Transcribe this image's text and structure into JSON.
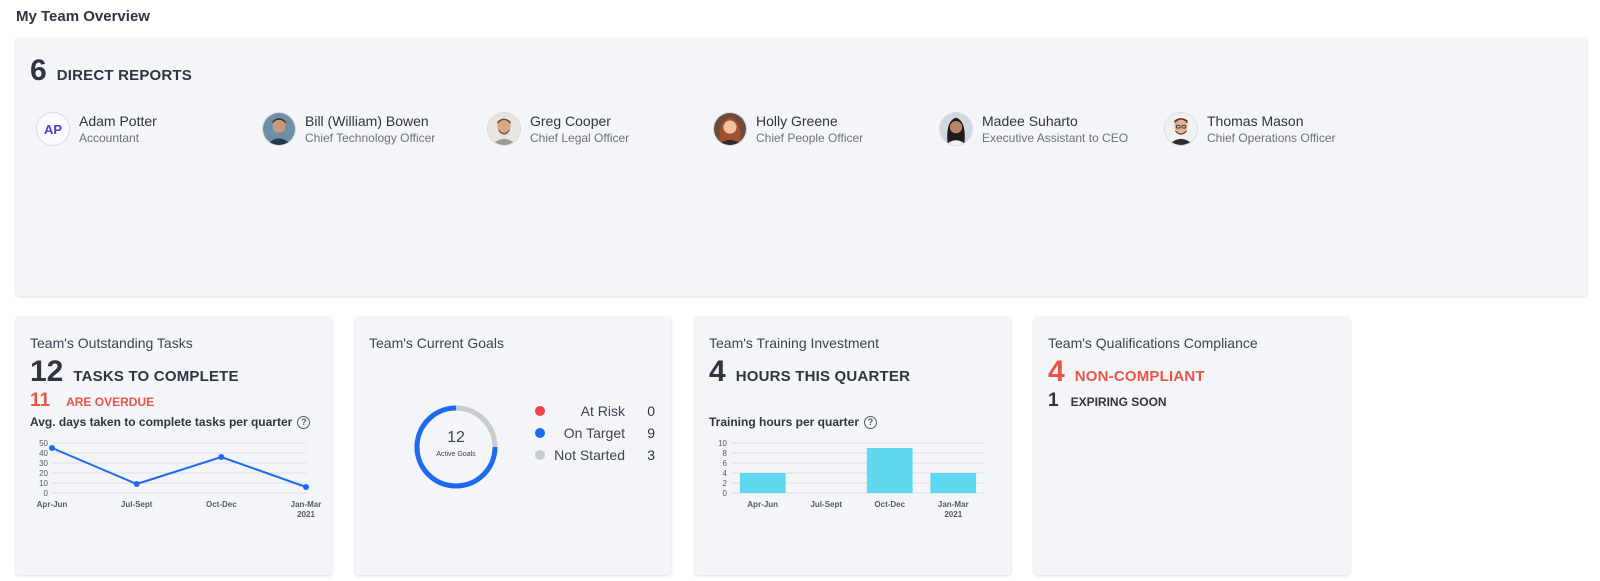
{
  "page": {
    "title": "My Team Overview"
  },
  "reports": {
    "count": "6",
    "label": "DIRECT REPORTS",
    "people": [
      {
        "name": "Adam Potter",
        "role": "Accountant",
        "initials": "AP",
        "avatar": "initials"
      },
      {
        "name": "Bill (William) Bowen",
        "role": "Chief Technology Officer",
        "avatar": "photo"
      },
      {
        "name": "Greg Cooper",
        "role": "Chief Legal Officer",
        "avatar": "photo"
      },
      {
        "name": "Holly Greene",
        "role": "Chief People Officer",
        "avatar": "photo"
      },
      {
        "name": "Madee Suharto",
        "role": "Executive Assistant to CEO",
        "avatar": "photo"
      },
      {
        "name": "Thomas Mason",
        "role": "Chief Operations Officer",
        "avatar": "photo"
      }
    ]
  },
  "tasks": {
    "title": "Team's Outstanding Tasks",
    "count": "12",
    "count_label": "TASKS TO COMPLETE",
    "overdue": "11",
    "overdue_label": "ARE OVERDUE",
    "chart_caption": "Avg. days taken to complete tasks per quarter",
    "help_icon": "?"
  },
  "goals": {
    "title": "Team's Current Goals",
    "active_count": "12",
    "active_label": "Active Goals",
    "legend": [
      {
        "label": "At Risk",
        "value": "0",
        "color": "#ef4444"
      },
      {
        "label": "On Target",
        "value": "9",
        "color": "#1d6af0"
      },
      {
        "label": "Not Started",
        "value": "3",
        "color": "#c9ccd2"
      }
    ]
  },
  "training": {
    "title": "Team's Training Investment",
    "count": "4",
    "count_label": "HOURS THIS QUARTER",
    "chart_caption": "Training hours per quarter",
    "help_icon": "?"
  },
  "qualifications": {
    "title": "Team's Qualifications Compliance",
    "noncompliant": "4",
    "noncompliant_label": "NON-COMPLIANT",
    "expiring": "1",
    "expiring_label": "EXPIRING SOON"
  },
  "colors": {
    "accent_blue": "#1d6af0",
    "bar_cyan": "#5fd8ee",
    "alert_red": "#ea5545",
    "card_bg": "#f3f5f9"
  },
  "chart_data": [
    {
      "type": "line",
      "title": "Avg. days taken to complete tasks per quarter",
      "categories": [
        "Apr-Jun",
        "Jul-Sept",
        "Oct-Dec",
        "Jan-Mar 2021"
      ],
      "values": [
        45,
        9,
        36,
        6
      ],
      "ylim": [
        0,
        50
      ],
      "yticks": [
        0,
        10,
        20,
        30,
        40,
        50
      ],
      "grid": true
    },
    {
      "type": "bar",
      "title": "Training hours per quarter",
      "categories": [
        "Apr-Jun",
        "Jul-Sept",
        "Oct-Dec",
        "Jan-Mar 2021"
      ],
      "values": [
        4,
        0,
        9,
        4
      ],
      "ylim": [
        0,
        10
      ],
      "yticks": [
        0,
        2,
        4,
        6,
        8,
        10
      ],
      "grid": true
    },
    {
      "type": "pie",
      "title": "Team's Current Goals",
      "categories": [
        "At Risk",
        "On Target",
        "Not Started"
      ],
      "values": [
        0,
        9,
        3
      ]
    }
  ]
}
